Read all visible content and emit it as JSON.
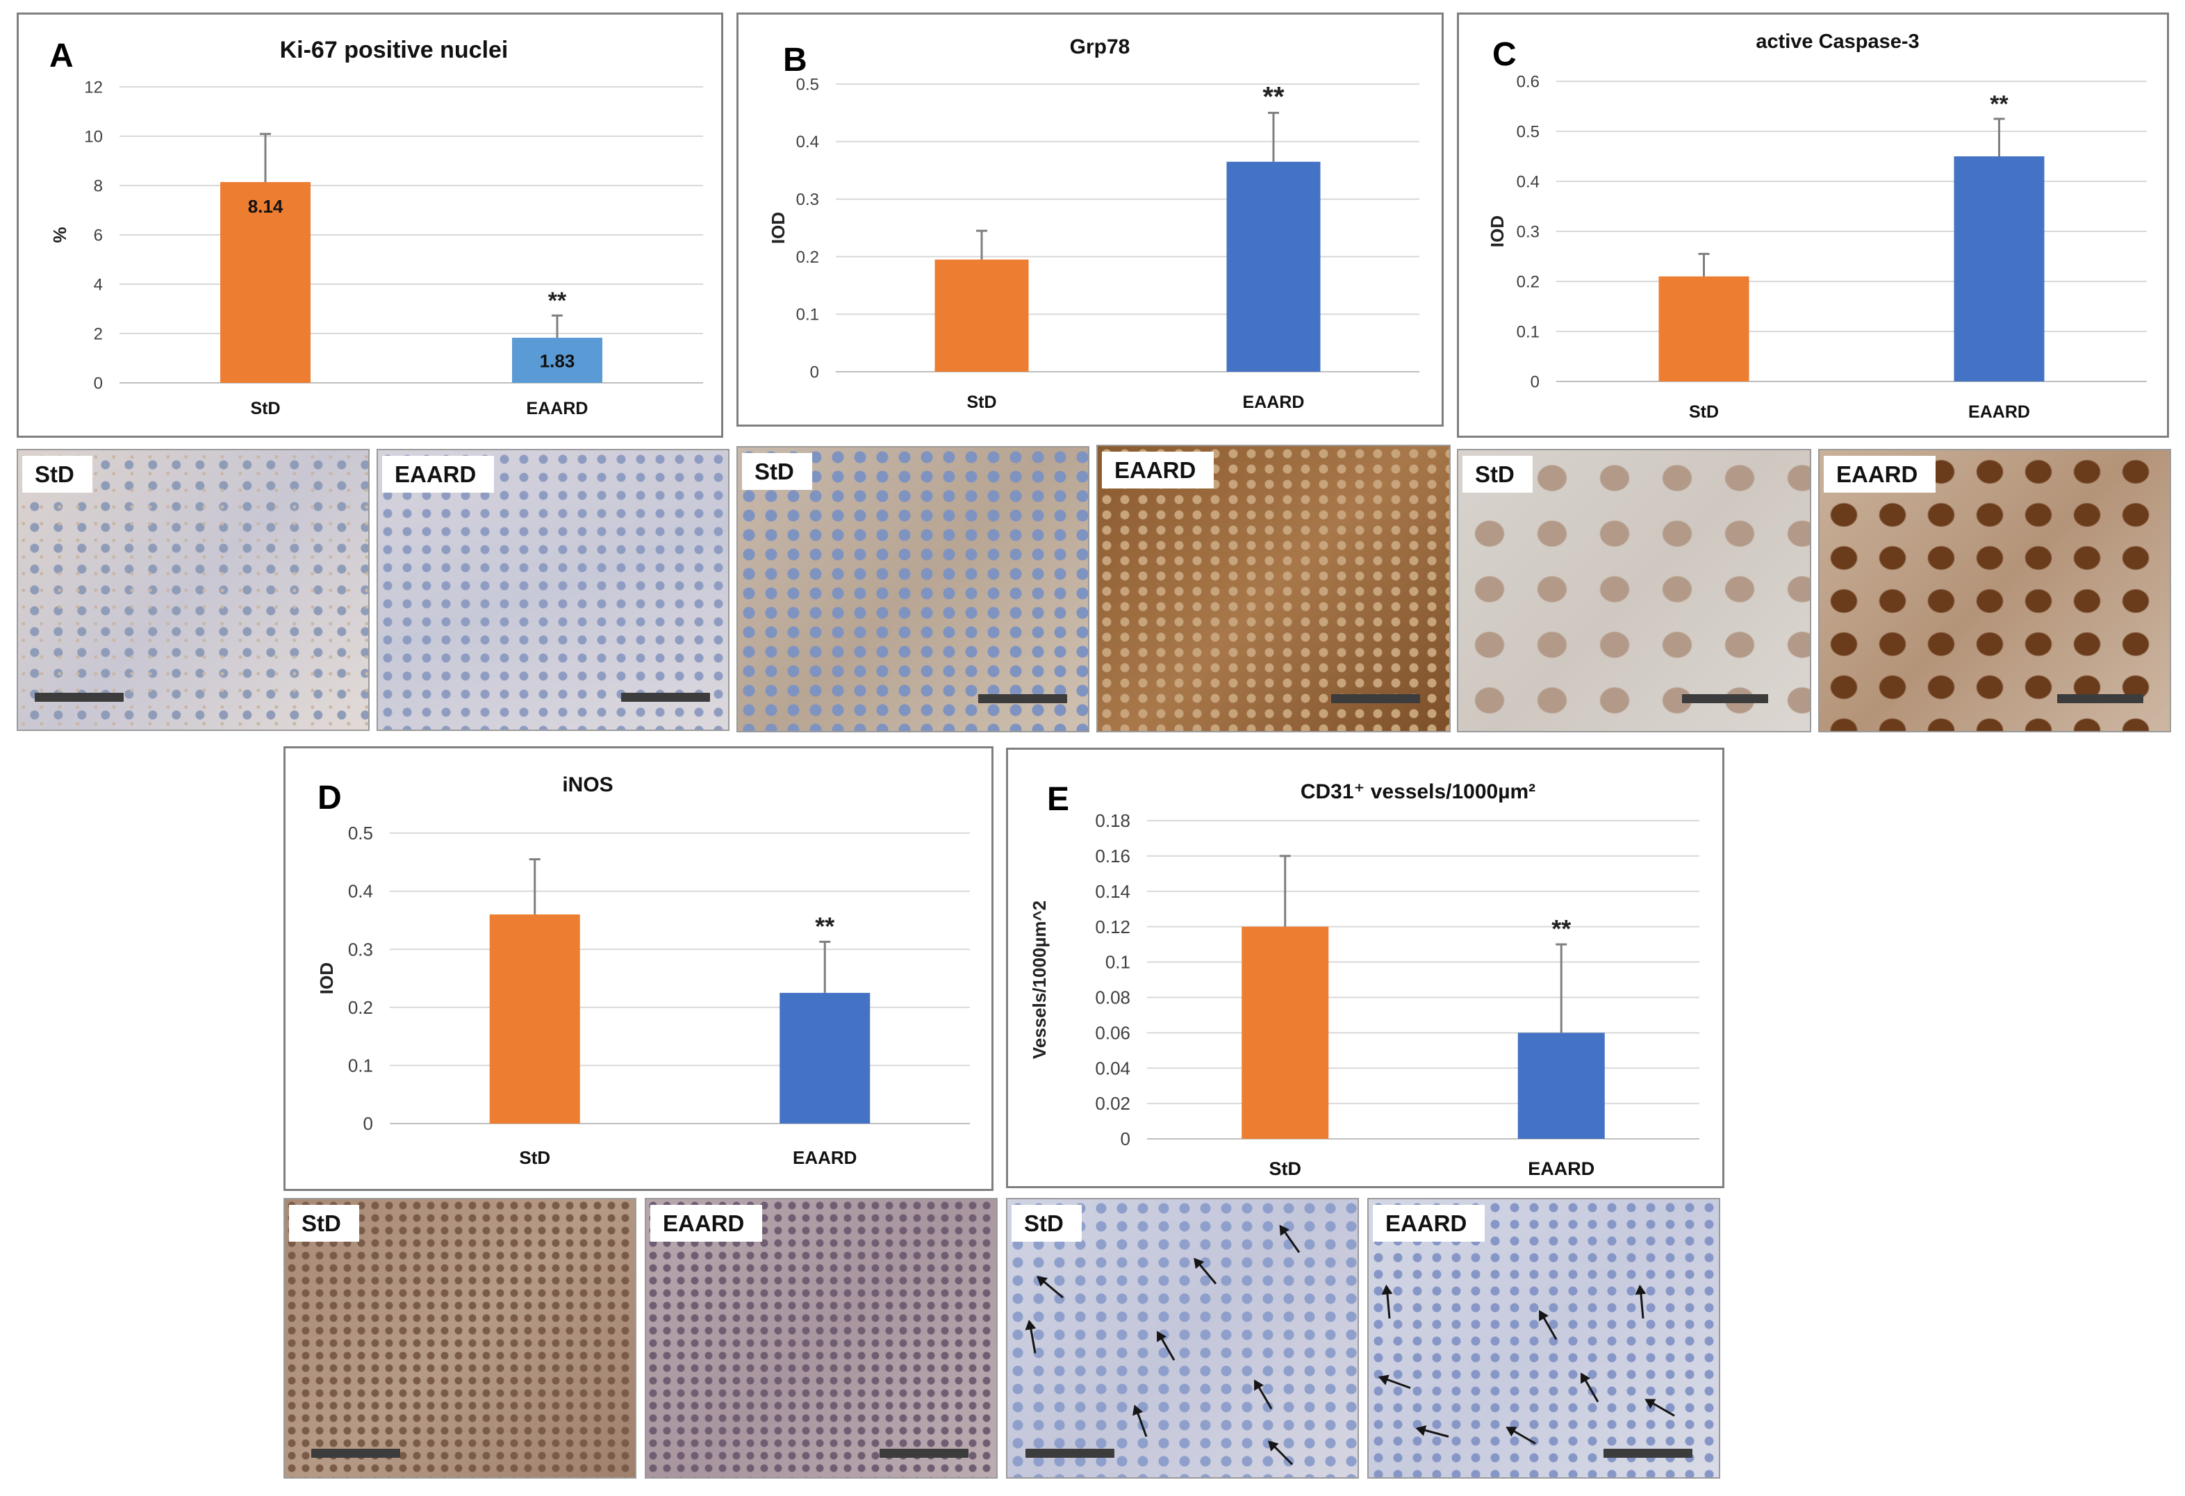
{
  "chart_data": [
    {
      "panel": "A",
      "type": "bar",
      "title": "Ki-67 positive nuclei",
      "xlabel": "",
      "ylabel": "%",
      "categories": [
        "StD",
        "EAARD"
      ],
      "values": [
        8.14,
        1.83
      ],
      "errors": [
        1.95,
        0.9
      ],
      "bar_colors": [
        "#ed7d31",
        "#5b9bd5"
      ],
      "data_labels": [
        "8.14",
        "1.83"
      ],
      "significance": [
        "",
        "**"
      ],
      "ylim": [
        0,
        12
      ],
      "yticks": [
        0,
        2,
        4,
        6,
        8,
        10,
        12
      ],
      "ytick_labels": [
        "0",
        "2",
        "4",
        "6",
        "8",
        "10",
        "12"
      ],
      "grid": true,
      "legend": "none"
    },
    {
      "panel": "B",
      "type": "bar",
      "title": "Grp78",
      "xlabel": "",
      "ylabel": "IOD",
      "categories": [
        "StD",
        "EAARD"
      ],
      "values": [
        0.195,
        0.365
      ],
      "errors": [
        0.05,
        0.085
      ],
      "bar_colors": [
        "#ed7d31",
        "#4472c4"
      ],
      "data_labels": [
        "",
        ""
      ],
      "significance": [
        "",
        "**"
      ],
      "ylim": [
        0,
        0.5
      ],
      "yticks": [
        0,
        0.1,
        0.2,
        0.3,
        0.4,
        0.5
      ],
      "ytick_labels": [
        "0",
        "0.1",
        "0.2",
        "0.3",
        "0.4",
        "0.5"
      ],
      "grid": true,
      "legend": "none"
    },
    {
      "panel": "C",
      "type": "bar",
      "title": "active Caspase-3",
      "xlabel": "",
      "ylabel": "IOD",
      "categories": [
        "StD",
        "EAARD"
      ],
      "values": [
        0.21,
        0.45
      ],
      "errors": [
        0.045,
        0.075
      ],
      "bar_colors": [
        "#ed7d31",
        "#4472c4"
      ],
      "data_labels": [
        "",
        ""
      ],
      "significance": [
        "",
        "**"
      ],
      "ylim": [
        0,
        0.6
      ],
      "yticks": [
        0,
        0.1,
        0.2,
        0.3,
        0.4,
        0.5,
        0.6
      ],
      "ytick_labels": [
        "0",
        "0.1",
        "0.2",
        "0.3",
        "0.4",
        "0.5",
        "0.6"
      ],
      "grid": true,
      "legend": "none"
    },
    {
      "panel": "D",
      "type": "bar",
      "title": "iNOS",
      "xlabel": "",
      "ylabel": "IOD",
      "categories": [
        "StD",
        "EAARD"
      ],
      "values": [
        0.36,
        0.225
      ],
      "errors": [
        0.095,
        0.088
      ],
      "bar_colors": [
        "#ed7d31",
        "#4472c4"
      ],
      "data_labels": [
        "",
        ""
      ],
      "significance": [
        "",
        "**"
      ],
      "ylim": [
        0,
        0.5
      ],
      "yticks": [
        0,
        0.1,
        0.2,
        0.3,
        0.4,
        0.5
      ],
      "ytick_labels": [
        "0",
        "0.1",
        "0.2",
        "0.3",
        "0.4",
        "0.5"
      ],
      "grid": true,
      "legend": "none"
    },
    {
      "panel": "E",
      "type": "bar",
      "title": "CD31⁺ vessels/1000µm²",
      "xlabel": "",
      "ylabel": "Vessels/1000µm^2",
      "categories": [
        "StD",
        "EAARD"
      ],
      "values": [
        0.12,
        0.06
      ],
      "errors": [
        0.04,
        0.05
      ],
      "bar_colors": [
        "#ed7d31",
        "#4472c4"
      ],
      "data_labels": [
        "",
        ""
      ],
      "significance": [
        "",
        "**"
      ],
      "ylim": [
        0,
        0.18
      ],
      "yticks": [
        0,
        0.02,
        0.04,
        0.06,
        0.08,
        0.1,
        0.12,
        0.14,
        0.16,
        0.18
      ],
      "ytick_labels": [
        "0",
        "0.02",
        "0.04",
        "0.06",
        "0.08",
        "0.1",
        "0.12",
        "0.14",
        "0.16",
        "0.18"
      ],
      "grid": true,
      "legend": "none"
    }
  ],
  "micrographs": [
    {
      "panel": "A",
      "label": "StD",
      "stain": "Ki-67"
    },
    {
      "panel": "A",
      "label": "EAARD",
      "stain": "Ki-67"
    },
    {
      "panel": "B",
      "label": "StD",
      "stain": "Grp78"
    },
    {
      "panel": "B",
      "label": "EAARD",
      "stain": "Grp78"
    },
    {
      "panel": "C",
      "label": "StD",
      "stain": "active Caspase-3"
    },
    {
      "panel": "C",
      "label": "EAARD",
      "stain": "active Caspase-3"
    },
    {
      "panel": "D",
      "label": "StD",
      "stain": "iNOS"
    },
    {
      "panel": "D",
      "label": "EAARD",
      "stain": "iNOS"
    },
    {
      "panel": "E",
      "label": "StD",
      "stain": "CD31"
    },
    {
      "panel": "E",
      "label": "EAARD",
      "stain": "CD31"
    }
  ],
  "colors": {
    "orange": "#ed7d31",
    "light_blue": "#5b9bd5",
    "blue": "#4472c4",
    "grid": "#d9d9d9",
    "border": "#7f7f7f"
  }
}
